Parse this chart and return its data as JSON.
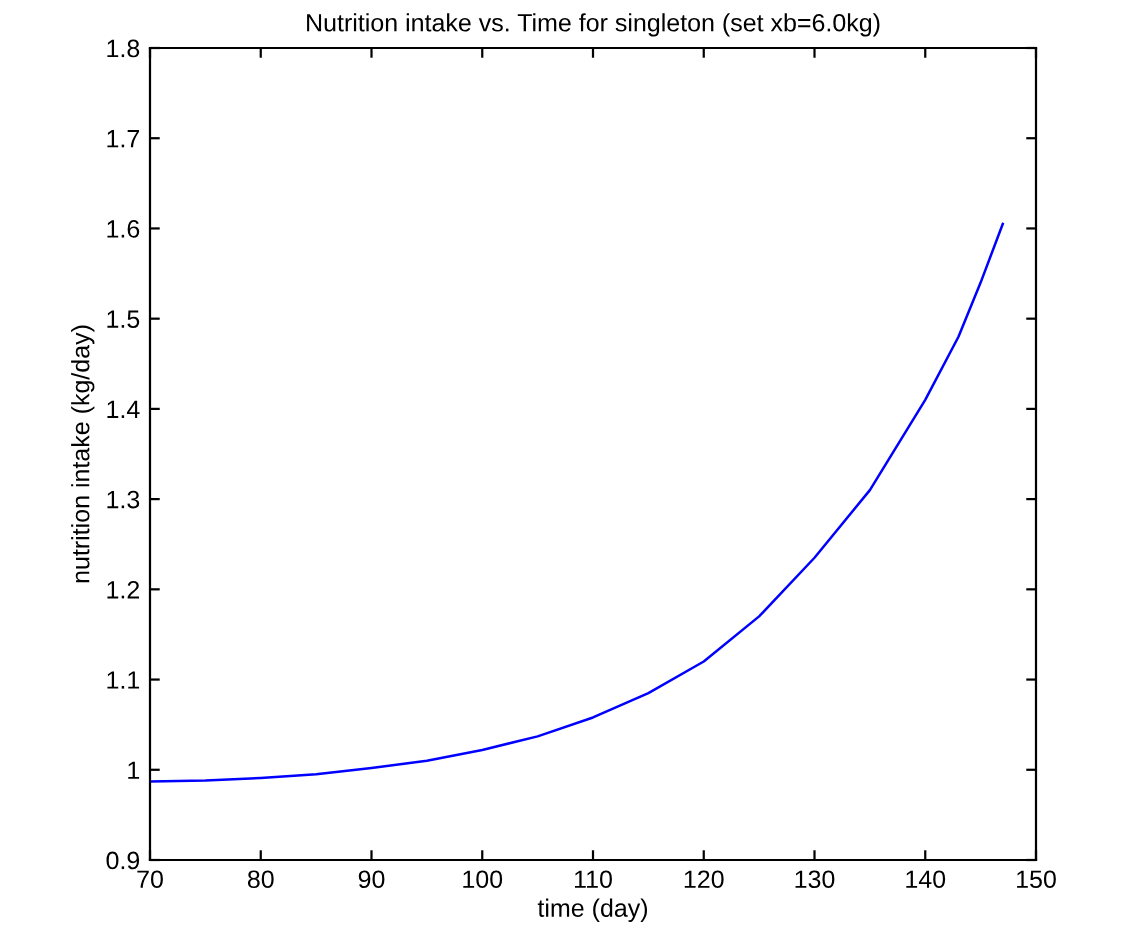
{
  "chart_data": {
    "type": "line",
    "title": "Nutrition intake vs. Time for singleton (set xb=6.0kg)",
    "xlabel": "time (day)",
    "ylabel": "nutrition intake (kg/day)",
    "x": [
      70,
      75,
      80,
      85,
      90,
      95,
      100,
      105,
      110,
      115,
      120,
      125,
      130,
      135,
      140,
      143,
      145,
      147
    ],
    "series": [
      {
        "color": "#0000ff",
        "values": [
          0.987,
          0.988,
          0.991,
          0.995,
          1.002,
          1.01,
          1.022,
          1.037,
          1.058,
          1.085,
          1.12,
          1.17,
          1.235,
          1.31,
          1.41,
          1.48,
          1.54,
          1.605
        ]
      }
    ],
    "xlim": [
      70,
      150
    ],
    "xticks": [
      70,
      80,
      90,
      100,
      110,
      120,
      130,
      140,
      150
    ],
    "ylim": [
      0.9,
      1.8
    ],
    "yticks": [
      0.9,
      1,
      1.1,
      1.2,
      1.3,
      1.4,
      1.5,
      1.6,
      1.7,
      1.8
    ],
    "grid": false,
    "legend": false,
    "marker": "none",
    "line_style": "solid"
  }
}
